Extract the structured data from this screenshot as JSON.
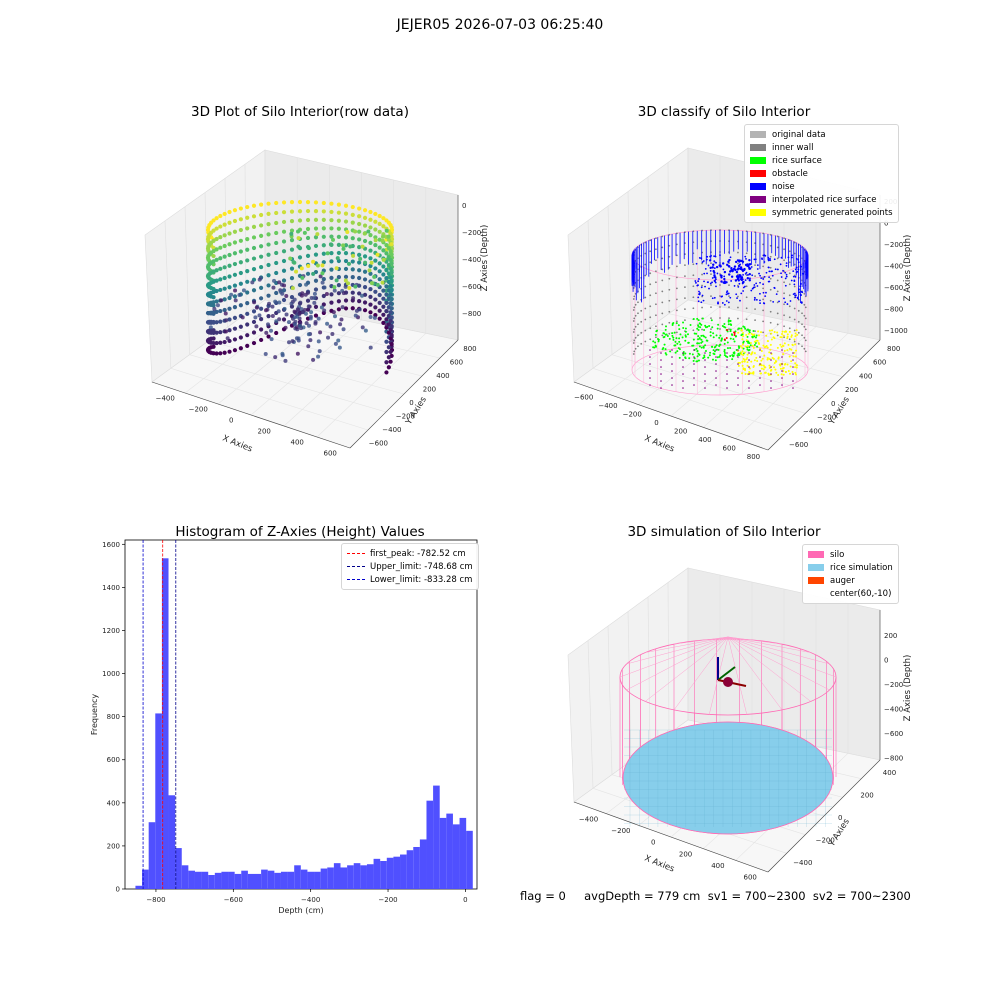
{
  "suptitle": "JEJER05 2026-07-03 06:25:40",
  "status_line": "flag = 0     avgDepth = 779 cm  sv1 = 700~2300  sv2 = 700~2300",
  "chart_data": [
    {
      "type": "scatter",
      "title": "3D Plot of Silo Interior(row data)",
      "xlabel": "X Axies",
      "ylabel": "Y Axies",
      "zlabel": "Z Axies (Depth)",
      "x_ticks": [
        "−400",
        "−200",
        "0",
        "200",
        "400",
        "600"
      ],
      "y_ticks": [
        "−600",
        "−400",
        "−200",
        "0",
        "200",
        "400",
        "600",
        "800"
      ],
      "z_ticks": [
        "0",
        "−200",
        "−400",
        "−600",
        "−800"
      ],
      "colormap": "viridis"
    },
    {
      "type": "scatter",
      "title": "3D classify of Silo Interior",
      "xlabel": "X Axies",
      "ylabel": "Y Axies",
      "zlabel": "Z Axies (Depth)",
      "x_ticks": [
        "−600",
        "−400",
        "−200",
        "0",
        "200",
        "400",
        "600",
        "800"
      ],
      "y_ticks": [
        "−600",
        "−400",
        "−200",
        "0",
        "200",
        "400",
        "600",
        "800"
      ],
      "z_ticks": [
        "200",
        "0",
        "−200",
        "−400",
        "−600",
        "−800",
        "−1000"
      ],
      "legend": [
        {
          "label": "original data",
          "color": "#b3b3b3"
        },
        {
          "label": "inner wall",
          "color": "#808080"
        },
        {
          "label": "rice surface",
          "color": "#00ff00"
        },
        {
          "label": "obstacle",
          "color": "#ff0000"
        },
        {
          "label": "noise",
          "color": "#0000ff"
        },
        {
          "label": "interpolated rice surface",
          "color": "#800080"
        },
        {
          "label": "symmetric generated points",
          "color": "#ffff00"
        }
      ]
    },
    {
      "type": "bar",
      "title": "Histogram of Z-Axies (Height) Values",
      "xlabel": "Depth (cm)",
      "ylabel": "Frequency",
      "xlim": [
        -880,
        30
      ],
      "ylim": [
        0,
        1620
      ],
      "x_ticks": [
        -800,
        -600,
        -400,
        -200,
        0
      ],
      "x_tick_labels": [
        "−800",
        "−600",
        "−400",
        "−200",
        "0"
      ],
      "y_ticks": [
        0,
        200,
        400,
        600,
        800,
        1000,
        1200,
        1400,
        1600
      ],
      "bin_start": -853,
      "bin_width": 17.1,
      "values": [
        15,
        90,
        310,
        815,
        1535,
        435,
        190,
        110,
        85,
        80,
        80,
        65,
        75,
        80,
        80,
        70,
        85,
        70,
        70,
        90,
        85,
        75,
        80,
        80,
        110,
        90,
        80,
        80,
        95,
        100,
        120,
        100,
        110,
        120,
        110,
        115,
        140,
        130,
        145,
        150,
        160,
        180,
        195,
        230,
        410,
        480,
        330,
        350,
        300,
        330,
        270
      ],
      "bar_color": "#4d4dff",
      "vlines": [
        {
          "label": "first_peak: -782.52 cm",
          "x": -782.52,
          "color": "#ff0000"
        },
        {
          "label": "Upper_limit: -748.68 cm",
          "x": -748.68,
          "color": "#00008b"
        },
        {
          "label": "Lower_limit: -833.28 cm",
          "x": -833.28,
          "color": "#0000cd"
        }
      ]
    },
    {
      "type": "scatter",
      "title": "3D simulation of Silo Interior",
      "xlabel": "X Axies",
      "ylabel": "Y Axies",
      "zlabel": "Z Axies (Depth)",
      "x_ticks": [
        "−400",
        "−200",
        "0",
        "200",
        "400",
        "600"
      ],
      "y_ticks": [
        "−400",
        "−200",
        "0",
        "200",
        "400"
      ],
      "z_ticks": [
        "200",
        "0",
        "−200",
        "−400",
        "−600",
        "−800"
      ],
      "legend": [
        {
          "label": "silo",
          "color": "#ff69b4"
        },
        {
          "label": "rice simulation",
          "color": "#87ceeb"
        },
        {
          "label": "auger",
          "color": "#ff4500"
        },
        {
          "label": "center(60,-10)",
          "color": "transparent"
        }
      ]
    }
  ]
}
